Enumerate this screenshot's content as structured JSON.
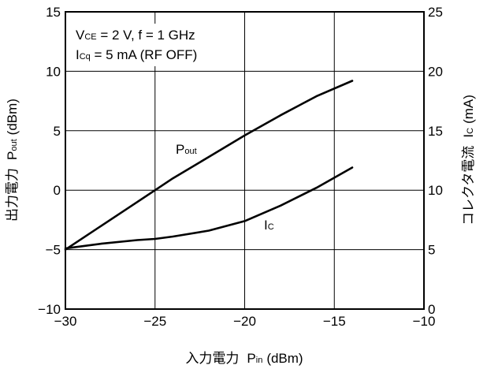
{
  "chart_data": {
    "type": "line",
    "xlabel": "入力電力",
    "xlabel_sym": "P",
    "xlabel_sub": "in",
    "xlabel_unit": "(dBm)",
    "ylabel_left": "出力電力",
    "ylabel_left_sym": "P",
    "ylabel_left_sub": "out",
    "ylabel_left_unit": "(dBm)",
    "ylabel_right": "コレクタ電流",
    "ylabel_right_sym": "I",
    "ylabel_right_sub": "C",
    "ylabel_right_unit": "(mA)",
    "xlim": [
      -30,
      -10
    ],
    "ylim_left": [
      -10,
      15
    ],
    "ylim_right": [
      0,
      25
    ],
    "x_ticks": [
      -30,
      -25,
      -20,
      -15,
      -10
    ],
    "y_left_ticks": [
      -10,
      -5,
      0,
      5,
      10,
      15
    ],
    "y_right_ticks": [
      0,
      5,
      10,
      15,
      20,
      25
    ],
    "x_tick_labels": [
      "−30",
      "−25",
      "−20",
      "−15",
      "−10"
    ],
    "y_left_tick_labels": [
      "−10",
      "−5",
      "0",
      "5",
      "10",
      "15"
    ],
    "y_right_tick_labels": [
      "0",
      "5",
      "10",
      "15",
      "20",
      "25"
    ],
    "grid": true,
    "annotation": {
      "line1": {
        "sym": "V",
        "sub": "CE",
        "text": " = 2 V, f = 1 GHz"
      },
      "line2": {
        "sym": "I",
        "sub": "Cq",
        "text": " = 5 mA (RF OFF)"
      }
    },
    "series": [
      {
        "name": "Pout",
        "label_sym": "P",
        "label_sub": "out",
        "axis": "left",
        "x": [
          -30,
          -28,
          -26,
          -25,
          -24,
          -22,
          -20,
          -18,
          -16,
          -14
        ],
        "y": [
          -5,
          -3,
          -1,
          0,
          1,
          2.8,
          4.6,
          6.3,
          7.9,
          9.2
        ]
      },
      {
        "name": "Ic",
        "label_sym": "I",
        "label_sub": "C",
        "axis": "right",
        "x": [
          -30,
          -28,
          -26,
          -25,
          -24,
          -22,
          -20,
          -18,
          -16,
          -14
        ],
        "y": [
          5.1,
          5.5,
          5.8,
          5.9,
          6.1,
          6.6,
          7.4,
          8.7,
          10.2,
          11.9
        ]
      }
    ]
  }
}
